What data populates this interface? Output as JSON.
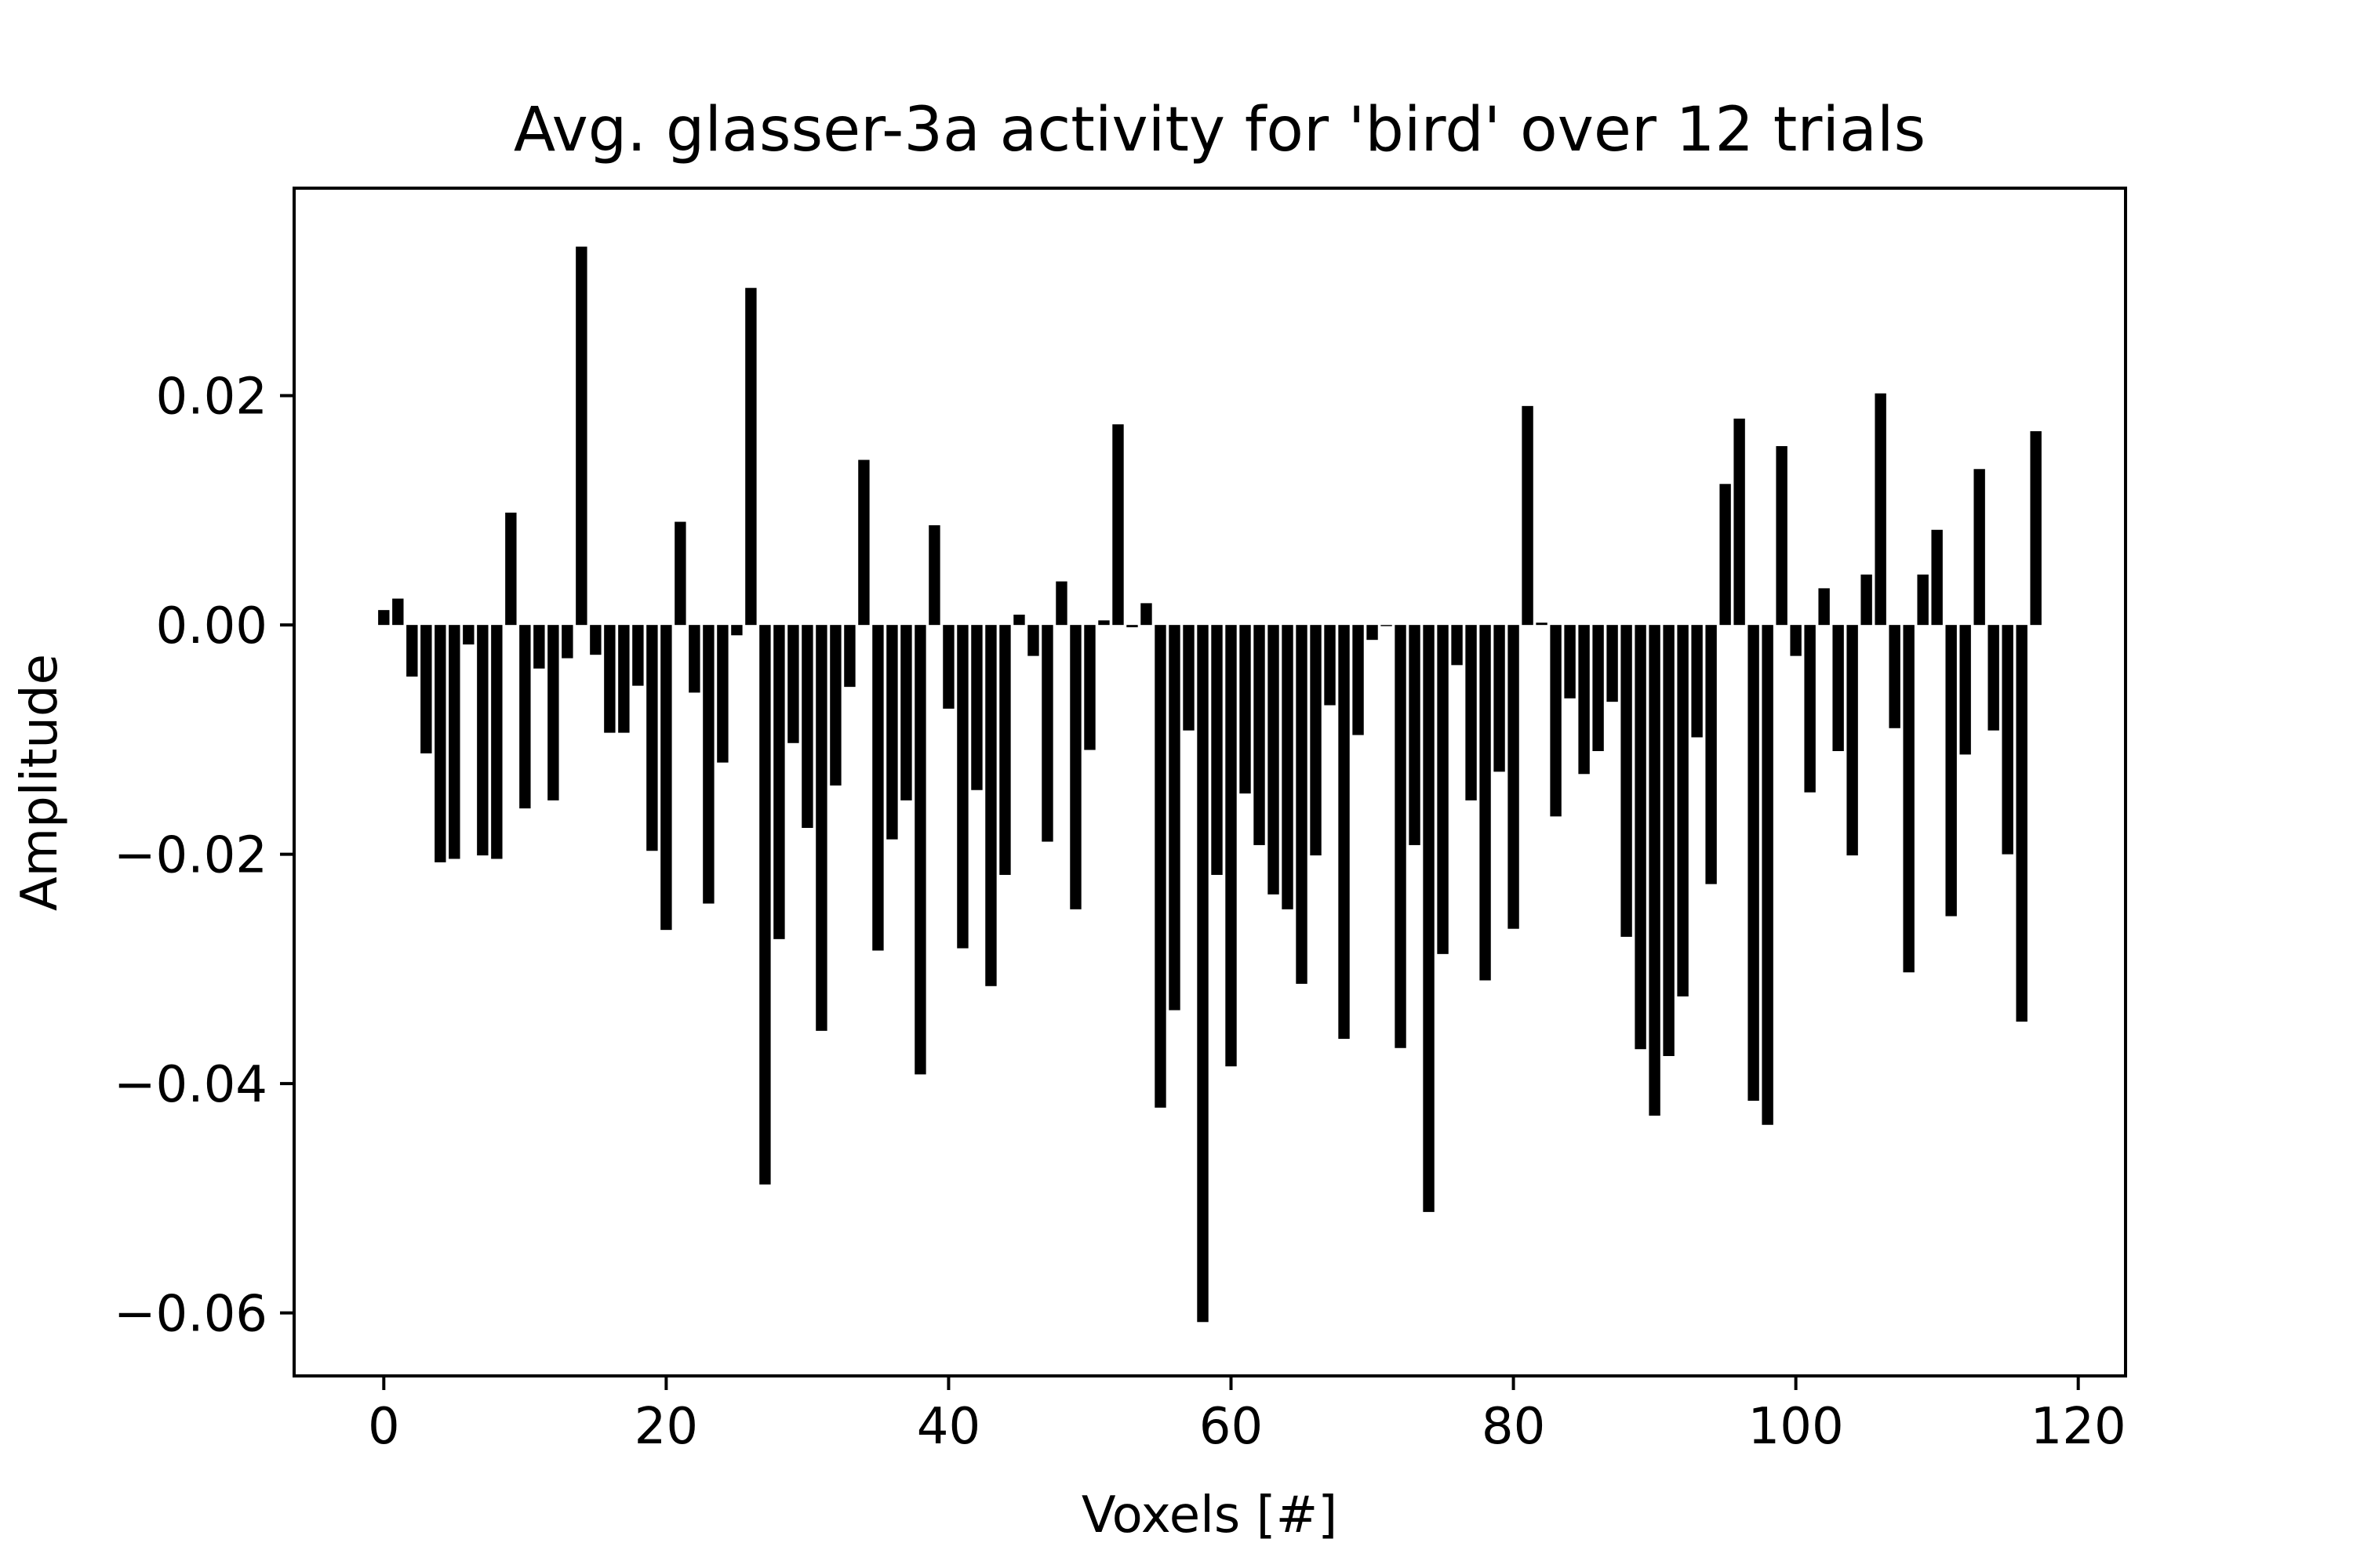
{
  "chart_data": {
    "type": "bar",
    "title": "Avg. glasser-3a activity for 'bird' over 12 trials",
    "xlabel": "Voxels [#]",
    "ylabel": "Amplitude",
    "xlim": [
      -6.35,
      123.35
    ],
    "ylim": [
      -0.0655,
      0.0381
    ],
    "xticks": [
      0,
      20,
      40,
      60,
      80,
      100,
      120
    ],
    "yticks": [
      -0.06,
      -0.04,
      -0.02,
      0.0,
      0.02
    ],
    "ytick_labels": [
      "−0.06",
      "−0.04",
      "−0.02",
      "0.00",
      "0.02"
    ],
    "bar_color": "#000000",
    "grid": false,
    "x": [
      0,
      1,
      2,
      3,
      4,
      5,
      6,
      7,
      8,
      9,
      10,
      11,
      12,
      13,
      14,
      15,
      16,
      17,
      18,
      19,
      20,
      21,
      22,
      23,
      24,
      25,
      26,
      27,
      28,
      29,
      30,
      31,
      32,
      33,
      34,
      35,
      36,
      37,
      38,
      39,
      40,
      41,
      42,
      43,
      44,
      45,
      46,
      47,
      48,
      49,
      50,
      51,
      52,
      53,
      54,
      55,
      56,
      57,
      58,
      59,
      60,
      61,
      62,
      63,
      64,
      65,
      66,
      67,
      68,
      69,
      70,
      71,
      72,
      73,
      74,
      75,
      76,
      77,
      78,
      79,
      80,
      81,
      82,
      83,
      84,
      85,
      86,
      87,
      88,
      89,
      90,
      91,
      92,
      93,
      94,
      95,
      96,
      97,
      98,
      99,
      100,
      101,
      102,
      103,
      104,
      105,
      106,
      107,
      108,
      109,
      110,
      111,
      112,
      113,
      114,
      115,
      116,
      117
    ],
    "values": [
      0.0013,
      0.0023,
      -0.0045,
      -0.0112,
      -0.0207,
      -0.0204,
      -0.0017,
      -0.0201,
      -0.0204,
      0.0098,
      -0.016,
      -0.0038,
      -0.0153,
      -0.0029,
      0.033,
      -0.0026,
      -0.0094,
      -0.0094,
      -0.0053,
      -0.0197,
      -0.0266,
      0.009,
      -0.0059,
      -0.0243,
      -0.012,
      -0.0009,
      0.0294,
      -0.0488,
      -0.0274,
      -0.0103,
      -0.0177,
      -0.0354,
      -0.014,
      -0.0054,
      0.0144,
      -0.0284,
      -0.0187,
      -0.0153,
      -0.0392,
      0.0087,
      -0.0073,
      -0.0282,
      -0.0144,
      -0.0315,
      -0.0218,
      0.0009,
      -0.0027,
      -0.0189,
      0.0038,
      -0.0248,
      -0.0109,
      0.0004,
      0.0175,
      -0.0002,
      0.0019,
      -0.0421,
      -0.0336,
      -0.0092,
      -0.0608,
      -0.0218,
      -0.0385,
      -0.0147,
      -0.0192,
      -0.0235,
      -0.0248,
      -0.0313,
      -0.0201,
      -0.007,
      -0.0361,
      -0.0096,
      -0.0013,
      -0.0001,
      -0.0369,
      -0.0192,
      -0.0512,
      -0.0287,
      -0.0035,
      -0.0153,
      -0.031,
      -0.0128,
      -0.0265,
      0.0191,
      0.0002,
      -0.0167,
      -0.0064,
      -0.013,
      -0.011,
      -0.0067,
      -0.0272,
      -0.037,
      -0.0428,
      -0.0376,
      -0.0324,
      -0.0098,
      -0.0226,
      0.0123,
      0.018,
      -0.0415,
      -0.0436,
      0.0156,
      -0.0027,
      -0.0146,
      0.0032,
      -0.011,
      -0.0201,
      0.0044,
      0.0202,
      -0.009,
      -0.0303,
      0.0044,
      0.0083,
      -0.0254,
      -0.0113,
      0.0136,
      -0.0092,
      -0.02,
      -0.0346,
      0.0169
    ]
  }
}
